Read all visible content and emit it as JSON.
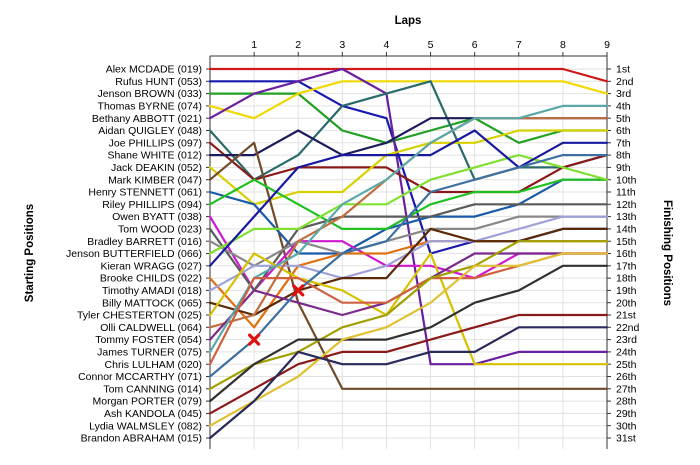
{
  "chart_data": {
    "type": "line",
    "title": "",
    "xlabel": "Laps",
    "ylabel_left": "Starting Positions",
    "ylabel_right": "Finishing Positions",
    "x_ticks": [
      1,
      2,
      3,
      4,
      5,
      6,
      7,
      8,
      9
    ],
    "x_range": [
      0,
      9
    ],
    "y_range": [
      1,
      31
    ],
    "y_reversed": true,
    "grid": true,
    "finish_labels": [
      "1st",
      "2nd",
      "3rd",
      "4th",
      "5th",
      "6th",
      "7th",
      "8th",
      "9th",
      "10th",
      "11th",
      "12th",
      "13th",
      "14th",
      "15th",
      "16th",
      "17th",
      "18th",
      "19th",
      "20th",
      "21st",
      "22nd",
      "23rd",
      "24th",
      "25th",
      "26th",
      "27th",
      "28th",
      "29th",
      "30th",
      "31st"
    ],
    "series": [
      {
        "name": "Alex MCDADE (019)",
        "color": "#d01818",
        "positions": [
          1,
          1,
          1,
          1,
          1,
          1,
          1,
          1,
          1,
          2
        ]
      },
      {
        "name": "Rufus HUNT (053)",
        "color": "#1a1ab0",
        "positions": [
          2,
          2,
          2,
          4,
          5,
          16,
          15,
          15,
          14,
          14
        ]
      },
      {
        "name": "Jenson BROWN (033)",
        "color": "#22a022",
        "positions": [
          3,
          3,
          3,
          6,
          7,
          6,
          5,
          7,
          6,
          6
        ]
      },
      {
        "name": "Thomas BYRNE (074)",
        "color": "#f0d800",
        "positions": [
          4,
          5,
          3,
          2,
          2,
          2,
          2,
          2,
          2,
          3
        ]
      },
      {
        "name": "Bethany ABBOTT (021)",
        "color": "#6a1ea0",
        "positions": [
          5,
          3,
          2,
          1,
          3,
          25,
          25,
          24,
          24,
          24
        ]
      },
      {
        "name": "Aidan QUIGLEY (048)",
        "color": "#2a6a6a",
        "positions": [
          6,
          10,
          8,
          4,
          3,
          2,
          10,
          9,
          9,
          8
        ]
      },
      {
        "name": "Joe PHILLIPS (097)",
        "color": "#8a1a1a",
        "positions": [
          7,
          10,
          9,
          9,
          9,
          11,
          11,
          11,
          9,
          8
        ]
      },
      {
        "name": "Shane WHITE (012)",
        "color": "#1c1c5c",
        "positions": [
          8,
          8,
          6,
          8,
          7,
          5,
          5,
          5,
          5,
          5
        ]
      },
      {
        "name": "Jack DEAKIN (052)",
        "color": "#d8d000",
        "positions": [
          9,
          12,
          11,
          11,
          8,
          7,
          7,
          6,
          6,
          6
        ]
      },
      {
        "name": "Mark KIMBER (047)",
        "color": "#704a28",
        "positions": [
          10,
          7,
          20,
          27,
          27,
          27,
          27,
          27,
          27,
          27
        ]
      },
      {
        "name": "Henry STENNETT (061)",
        "color": "#1a5aa8",
        "positions": [
          11,
          12,
          16,
          16,
          14,
          13,
          13,
          12,
          10,
          10
        ]
      },
      {
        "name": "Riley PHILLIPS (094)",
        "color": "#20c020",
        "positions": [
          12,
          10,
          12,
          14,
          14,
          12,
          11,
          11,
          10,
          10
        ]
      },
      {
        "name": "Owen BYATT (038)",
        "color": "#d018d0",
        "positions": [
          13,
          19,
          15,
          15,
          17,
          17,
          18,
          16,
          16,
          16
        ]
      },
      {
        "name": "Tom WOOD (023)",
        "color": "#5a5a5a",
        "positions": [
          14,
          19,
          14,
          13,
          13,
          13,
          12,
          12,
          12,
          12
        ]
      },
      {
        "name": "Bradley BARRETT (016)",
        "color": "#888888",
        "positions": [
          15,
          17,
          15,
          16,
          15,
          14,
          14,
          13,
          13,
          13
        ]
      },
      {
        "name": "Jenson BUTTERFIELD (066)",
        "color": "#80e030",
        "positions": [
          16,
          14,
          14,
          12,
          12,
          10,
          9,
          8,
          9,
          10
        ]
      },
      {
        "name": "Kieran WRAGG (027)",
        "color": "#1a1aa0",
        "positions": [
          17,
          13,
          9,
          8,
          8,
          8,
          6,
          9,
          7,
          7
        ]
      },
      {
        "name": "Brooke CHILDS (022)",
        "color": "#e07010",
        "positions": [
          18,
          22,
          17,
          16,
          16,
          15,
          15,
          15,
          15,
          15
        ]
      },
      {
        "name": "Timothy AMADI (018)",
        "color": "#a0a0d8",
        "positions": [
          19,
          17,
          17,
          18,
          17,
          15,
          15,
          14,
          13,
          13
        ]
      },
      {
        "name": "Billy MATTOCK (065)",
        "color": "#5a2a08",
        "positions": [
          20,
          21,
          19,
          18,
          18,
          14,
          15,
          15,
          14,
          14
        ]
      },
      {
        "name": "Tyler CHESTERTON (025)",
        "color": "#d8c000",
        "positions": [
          21,
          16,
          18,
          19,
          21,
          16,
          25,
          25,
          25,
          25
        ]
      },
      {
        "name": "Olli CALDWELL (064)",
        "color": "#c07040",
        "positions": [
          22,
          21,
          15,
          13,
          10,
          7,
          5,
          5,
          5,
          5
        ]
      },
      {
        "name": "Tommy FOSTER (054)",
        "color": "#7a2a8a",
        "positions": [
          23,
          19,
          20,
          21,
          20,
          18,
          16,
          16,
          16,
          16
        ]
      },
      {
        "name": "James TURNER (075)",
        "color": "#5aa8a8",
        "positions": [
          24,
          18,
          16,
          12,
          10,
          7,
          5,
          5,
          4,
          4
        ]
      },
      {
        "name": "Chris LULHAM (020)",
        "color": "#d06040",
        "positions": [
          25,
          18,
          18,
          20,
          20,
          18,
          18,
          17,
          16,
          16
        ]
      },
      {
        "name": "Connor MCCARTHY (071)",
        "color": "#4070a0",
        "positions": [
          26,
          23,
          19,
          16,
          15,
          11,
          10,
          9,
          8,
          8
        ]
      },
      {
        "name": "Tom CANNING (014)",
        "color": "#a0a000",
        "positions": [
          27,
          25,
          24,
          22,
          21,
          18,
          17,
          15,
          15,
          15
        ]
      },
      {
        "name": "Morgan PORTER (079)",
        "color": "#303030",
        "positions": [
          28,
          25,
          23,
          23,
          23,
          22,
          20,
          19,
          17,
          17
        ]
      },
      {
        "name": "Ash KANDOLA (045)",
        "color": "#8a1a1a",
        "positions": [
          29,
          27,
          25,
          24,
          24,
          23,
          22,
          21,
          21,
          21
        ]
      },
      {
        "name": "Lydia WALMSLEY (082)",
        "color": "#e0c030",
        "positions": [
          30,
          28,
          26,
          23,
          22,
          20,
          17,
          17,
          16,
          16
        ]
      },
      {
        "name": "Brandon ABRAHAM (015)",
        "color": "#2a2a5a",
        "positions": [
          31,
          28,
          24,
          25,
          25,
          24,
          24,
          22,
          22,
          22
        ]
      }
    ],
    "markers": [
      {
        "series": "Timothy AMADI (018)",
        "lap": 2,
        "pos": 19,
        "symbol": "x",
        "color": "#e01010"
      },
      {
        "series": "Olli CALDWELL (064)",
        "lap": 1,
        "pos": 23,
        "symbol": "x",
        "color": "#e01010"
      }
    ]
  }
}
